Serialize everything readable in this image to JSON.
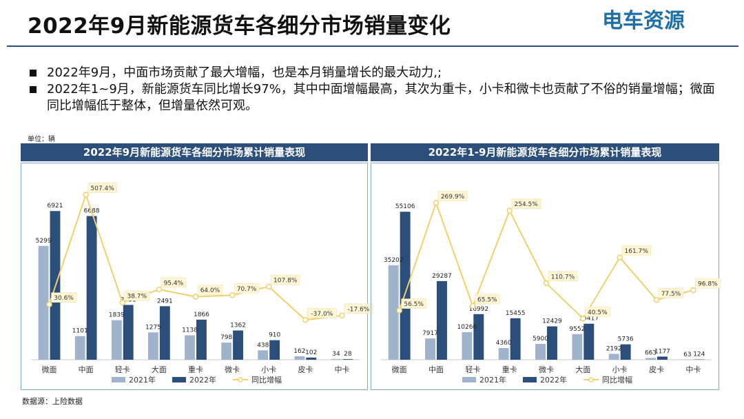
{
  "header": {
    "title": "2022年9月新能源货车各细分市场销量变化",
    "logo_text": "电车资源"
  },
  "bullets": [
    "2022年9月，中面市场贡献了最大增幅，也是本月销量增长的最大动力,;",
    "2022年1~9月，新能源货车同比增长97%，其中中面增幅最高，其次为重卡，小卡和微卡也贡献了不俗的销量增幅；微面同比增幅低于整体，但增量依然可观。"
  ],
  "unit_label": "单位：辆",
  "source_label": "数据源：上险数据",
  "colors": {
    "bar2021": "#9fb4cc",
    "bar2022": "#2c4e7a",
    "growth": "#f3cf6a",
    "header_bg": "#2c4e7a"
  },
  "chart_data": [
    {
      "type": "bar",
      "title": "2022年9月新能源货车各细分市场累计销量表现",
      "categories": [
        "微面",
        "中面",
        "轻卡",
        "大面",
        "重卡",
        "微卡",
        "小卡",
        "皮卡",
        "中卡"
      ],
      "series": [
        {
          "name": "2021年",
          "values": [
            5299,
            1101,
            1839,
            1275,
            1138,
            798,
            438,
            162,
            34
          ]
        },
        {
          "name": "2022年",
          "values": [
            6921,
            6688,
            2551,
            2491,
            1866,
            1362,
            910,
            102,
            28
          ]
        },
        {
          "name": "同比增幅",
          "type": "line",
          "values": [
            30.6,
            507.4,
            38.7,
            95.4,
            64.0,
            70.7,
            107.8,
            -37.0,
            -17.6
          ],
          "labels": [
            "30.6%",
            "507.4%",
            "38.7%",
            "95.4%",
            "64.0%",
            "70.7%",
            "107.8%",
            "-37.0%",
            "-17.6%"
          ]
        }
      ],
      "ylim": [
        0,
        8500
      ],
      "growth_lim": [
        -120,
        560
      ],
      "legend": "bottom"
    },
    {
      "type": "bar",
      "title": "2022年1-9月新能源货车各细分市场累计销量表现",
      "categories": [
        "微面",
        "中面",
        "轻卡",
        "重卡",
        "微卡",
        "大面",
        "小卡",
        "皮卡",
        "中卡"
      ],
      "series": [
        {
          "name": "2021年",
          "values": [
            35202,
            7917,
            10266,
            4360,
            5900,
            9552,
            2192,
            663,
            63
          ]
        },
        {
          "name": "2022年",
          "values": [
            55106,
            29287,
            16992,
            15455,
            12429,
            13417,
            5736,
            1177,
            124
          ]
        },
        {
          "name": "同比增幅",
          "type": "line",
          "values": [
            56.5,
            269.9,
            65.5,
            254.5,
            110.7,
            40.5,
            161.7,
            77.5,
            96.8
          ],
          "labels": [
            "56.5%",
            "269.9%",
            "65.5%",
            "254.5%",
            "110.7%",
            "40.5%",
            "161.7%",
            "77.5%",
            "96.8%"
          ]
        }
      ],
      "ylim": [
        0,
        68000
      ],
      "growth_lim": [
        0,
        310
      ],
      "legend": "bottom"
    }
  ]
}
